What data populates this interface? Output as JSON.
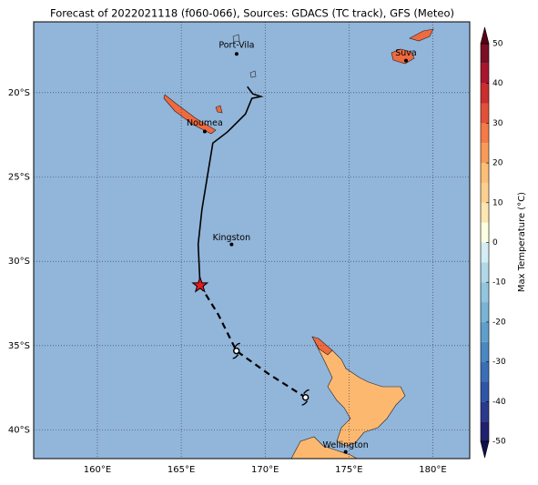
{
  "title": "Forecast of 2022021118 (f060-066), Sources: GDACS (TC track), GFS (Meteo)",
  "map": {
    "xlim": [
      156.2,
      182.2
    ],
    "ylim": [
      -41.7,
      -15.8
    ],
    "xticks": [
      {
        "value": 160,
        "label": "160°E"
      },
      {
        "value": 165,
        "label": "165°E"
      },
      {
        "value": 170,
        "label": "170°E"
      },
      {
        "value": 175,
        "label": "175°E"
      },
      {
        "value": 180,
        "label": "180°E"
      }
    ],
    "yticks": [
      {
        "value": -20,
        "label": "20°S"
      },
      {
        "value": -25,
        "label": "25°S"
      },
      {
        "value": -30,
        "label": "30°S"
      },
      {
        "value": -35,
        "label": "35°S"
      },
      {
        "value": -40,
        "label": "40°S"
      }
    ],
    "grid": true,
    "cities": [
      {
        "name": "Port-Vila",
        "lon": 168.3,
        "lat": -17.7
      },
      {
        "name": "Noumea",
        "lon": 166.4,
        "lat": -22.3
      },
      {
        "name": "Suva",
        "lon": 178.4,
        "lat": -18.1
      },
      {
        "name": "Kingston",
        "lon": 168.0,
        "lat": -29.0
      },
      {
        "name": "Wellington",
        "lon": 174.8,
        "lat": -41.3
      }
    ],
    "track_observed": {
      "lon": [
        168.94,
        169.26,
        169.75,
        169.21,
        168.83,
        167.74,
        166.88,
        166.23,
        166.01,
        166.12
      ],
      "lat": [
        -19.64,
        -20.07,
        -20.23,
        -20.34,
        -21.26,
        -22.34,
        -22.99,
        -26.94,
        -28.99,
        -31.42
      ]
    },
    "track_forecast": {
      "lon": [
        166.12,
        167.2,
        168.29,
        170.18,
        172.41
      ],
      "lat": [
        -31.42,
        -33.15,
        -35.31,
        -36.66,
        -38.07
      ]
    },
    "current_position": {
      "lon": 166.12,
      "lat": -31.42
    },
    "forecast_symbols": {
      "lon": [
        168.29,
        172.41
      ],
      "lat": [
        -35.31,
        -38.07
      ]
    }
  },
  "colorbar": {
    "label": "Max Temperature (°C)",
    "lim": [
      -50,
      50
    ],
    "ticks": [
      -50,
      -40,
      -30,
      -20,
      -10,
      0,
      10,
      20,
      30,
      40,
      50
    ],
    "levels": [
      -50,
      -45,
      -40,
      -35,
      -30,
      -25,
      -20,
      -15,
      -10,
      -5,
      0,
      5,
      10,
      15,
      20,
      25,
      30,
      35,
      40,
      45,
      50
    ],
    "colors": [
      "#20206f",
      "#2a3a8f",
      "#2f55a8",
      "#3a6fb8",
      "#4a88c2",
      "#5f9fcc",
      "#77b4d6",
      "#92c6de",
      "#b0d8e8",
      "#d4ecf4",
      "#fefee0",
      "#fde7b0",
      "#fdd090",
      "#fdbe75",
      "#f99a57",
      "#f57a45",
      "#e3503a",
      "#cc2d2d",
      "#a8152c",
      "#7d0c25"
    ]
  }
}
